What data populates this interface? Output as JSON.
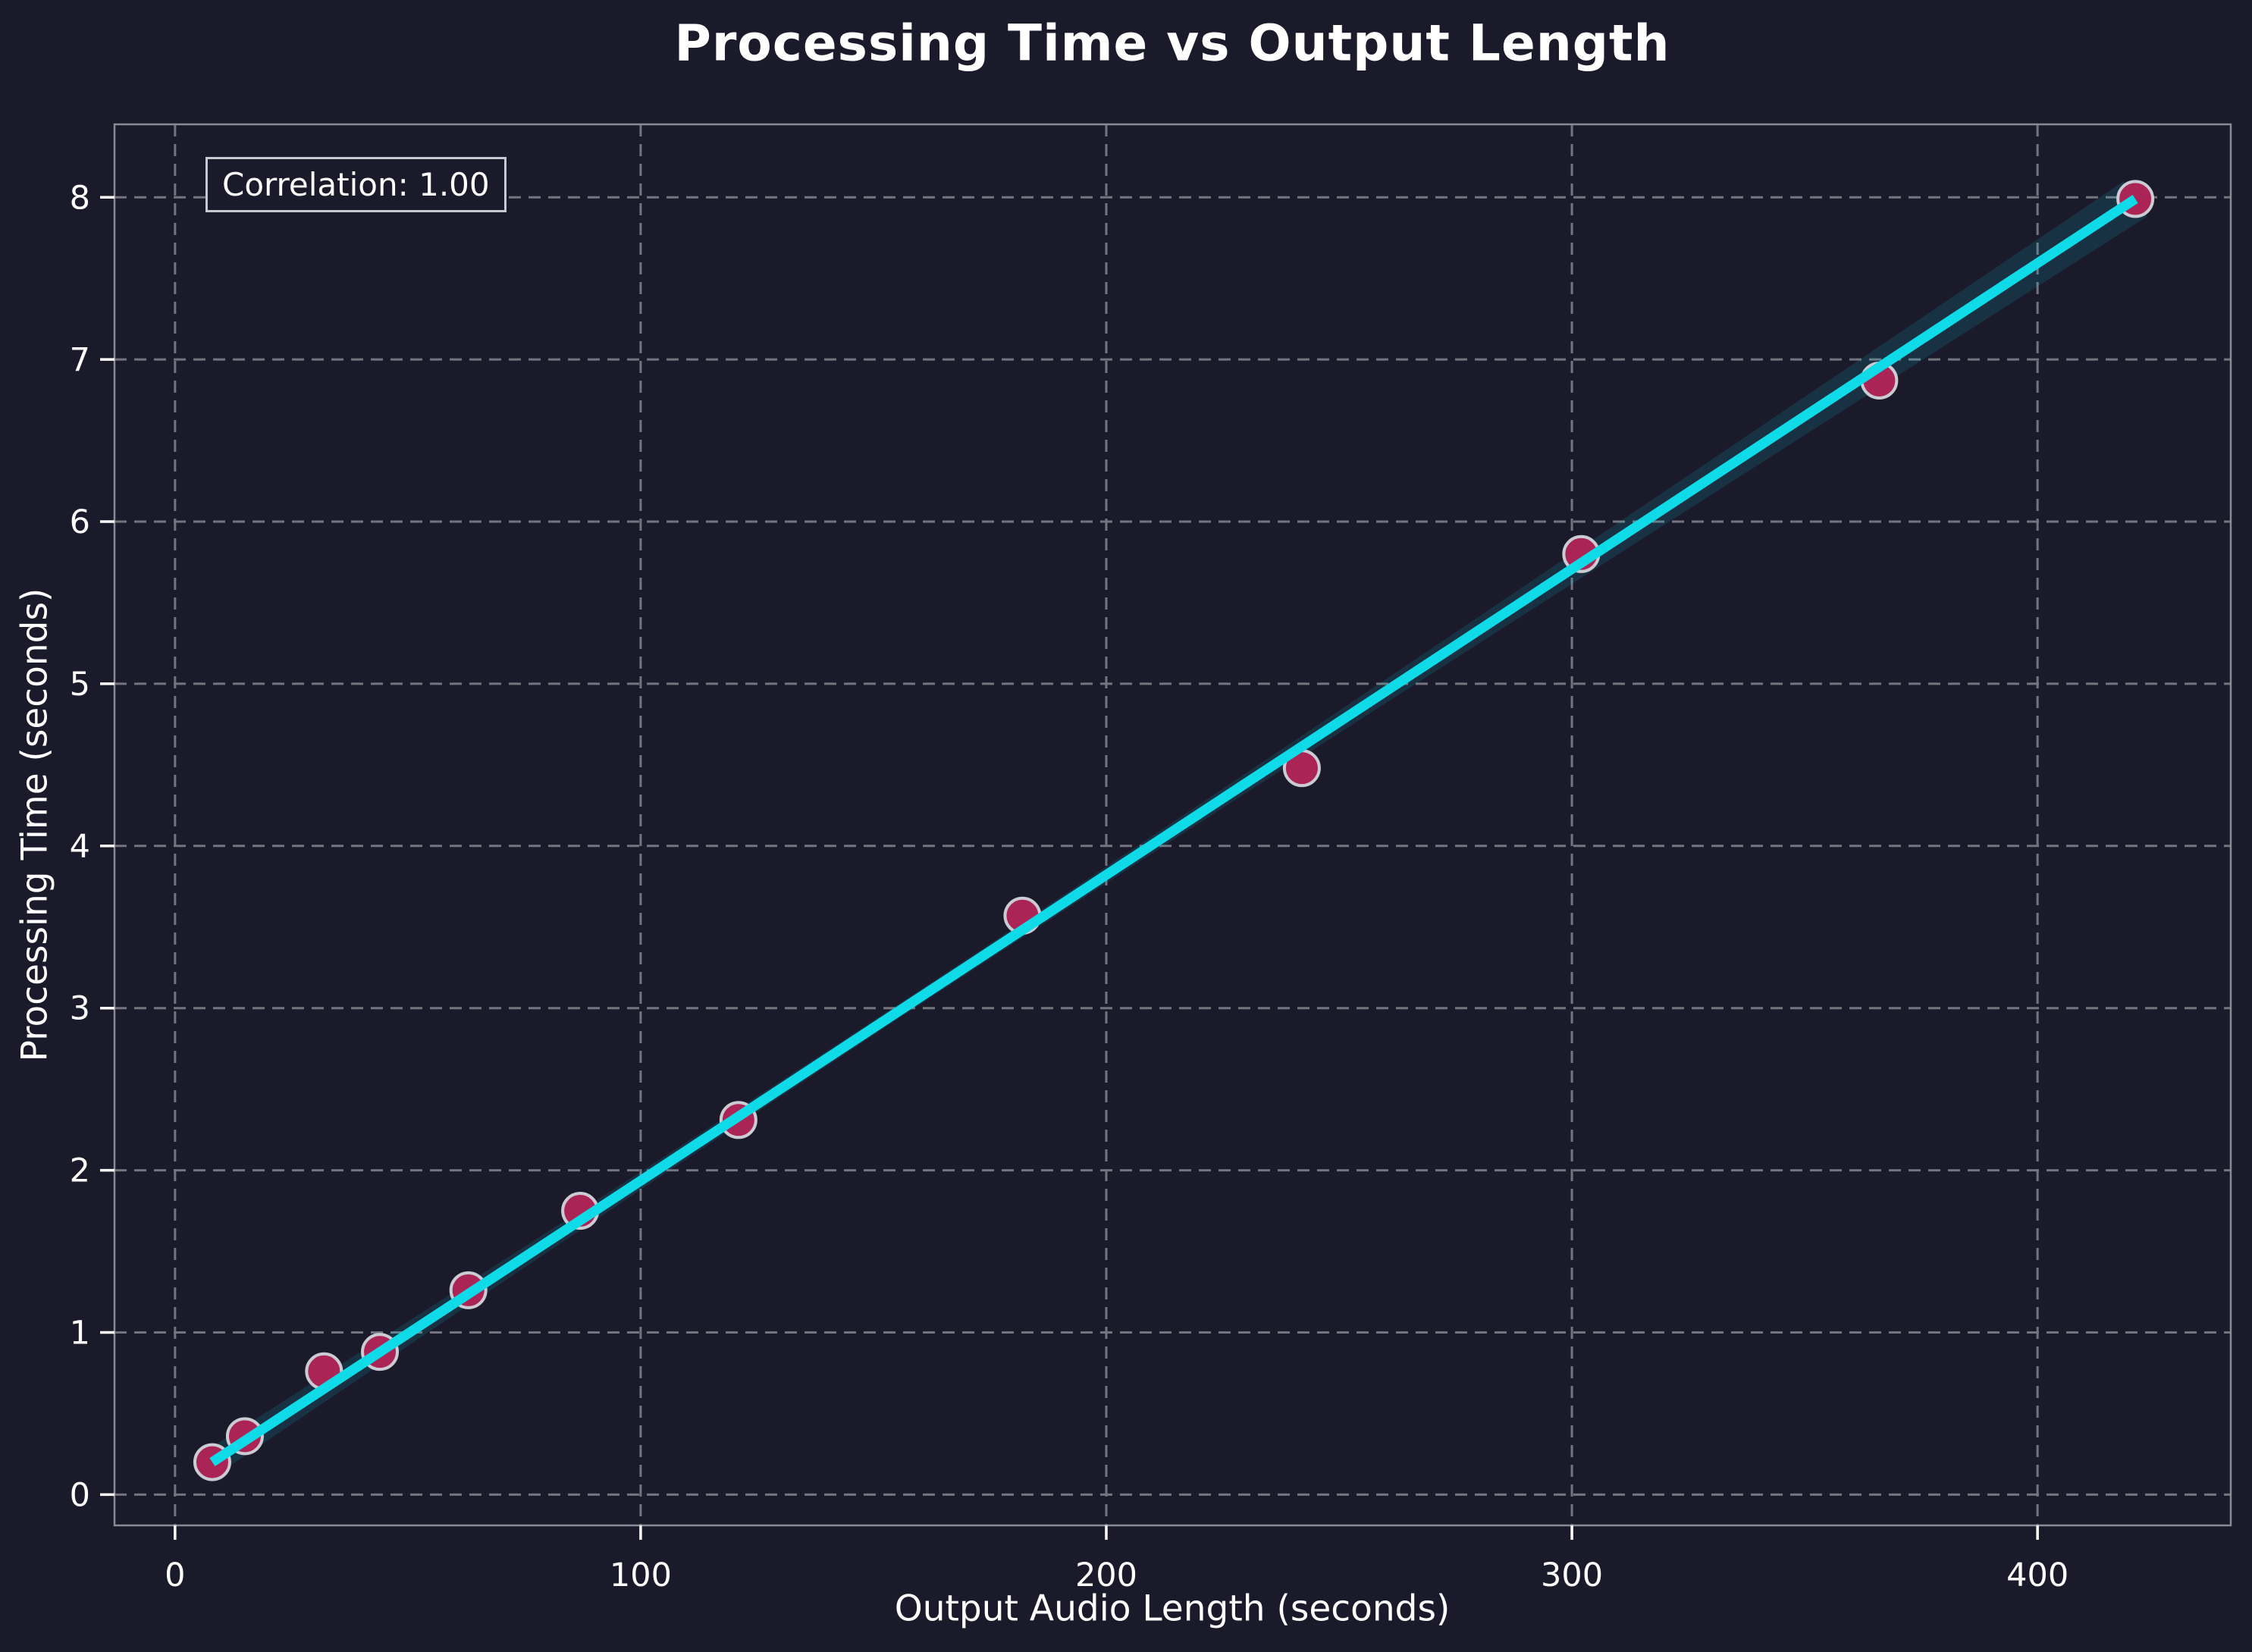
{
  "chart_data": {
    "type": "scatter",
    "title": "Processing Time vs Output Length",
    "xlabel": "Output Audio Length (seconds)",
    "ylabel": "Processing Time (seconds)",
    "annotation": "Correlation: 1.00",
    "xticks": [
      0,
      100,
      200,
      300,
      400
    ],
    "yticks": [
      0,
      1,
      2,
      3,
      4,
      5,
      6,
      7,
      8
    ],
    "xlim": [
      -13,
      441.5
    ],
    "ylim": [
      -0.19,
      8.45
    ],
    "grid": true,
    "legend_position": "none",
    "points": [
      [
        8,
        0.2
      ],
      [
        15,
        0.36
      ],
      [
        32,
        0.76
      ],
      [
        44,
        0.88
      ],
      [
        63,
        1.26
      ],
      [
        87,
        1.75
      ],
      [
        121,
        2.31
      ],
      [
        182,
        3.57
      ],
      [
        242,
        4.48
      ],
      [
        302,
        5.8
      ],
      [
        366,
        6.87
      ],
      [
        421,
        7.99
      ]
    ],
    "regression": {
      "x0": 8,
      "y0": 0.2,
      "x1": 421,
      "y1": 7.99
    },
    "colors": {
      "background": "#1a1a2b",
      "grid": "#74747f",
      "spine": "#8a8a94",
      "text": "#ffffff",
      "point_fill": "#ab2456",
      "point_edge": "#cbcbd3",
      "regression_line": "#0fdbe8",
      "confidence_band": "rgba(15,219,232,0.13)",
      "annotation_border": "#c8c8d0"
    }
  }
}
